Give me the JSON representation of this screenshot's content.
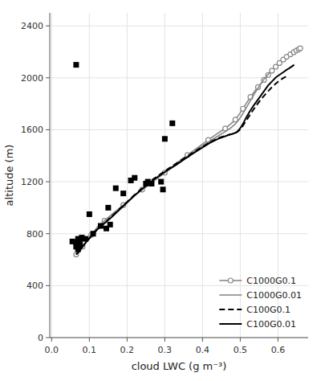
{
  "chart_data": {
    "type": "line",
    "xlabel": "cloud LWC (g m⁻³)",
    "ylabel": "altitude (m)",
    "xlim": [
      -0.005,
      0.68
    ],
    "ylim": [
      0,
      2500
    ],
    "xticks": [
      {
        "value": 0.0,
        "label": "0.0"
      },
      0.1,
      0.2,
      0.3,
      0.4,
      0.5,
      0.6
    ],
    "yticks": [
      0,
      400,
      800,
      1200,
      1600,
      2000,
      2400
    ],
    "grid": true,
    "legend": "lower right",
    "series": [
      {
        "name": "C1000G0.1",
        "type": "line",
        "color": "#888888",
        "line_style": "solid",
        "marker": "circle",
        "x": [
          0.065,
          0.072,
          0.082,
          0.093,
          0.105,
          0.12,
          0.14,
          0.165,
          0.19,
          0.215,
          0.24,
          0.27,
          0.3,
          0.33,
          0.36,
          0.39,
          0.415,
          0.44,
          0.46,
          0.475,
          0.487,
          0.497,
          0.507,
          0.517,
          0.527,
          0.537,
          0.547,
          0.556,
          0.563,
          0.569,
          0.574,
          0.579,
          0.584,
          0.589,
          0.594,
          0.599,
          0.604,
          0.609,
          0.614,
          0.619,
          0.623,
          0.628,
          0.633,
          0.638,
          0.642,
          0.646,
          0.649,
          0.652,
          0.655,
          0.657,
          0.659,
          0.661
        ],
        "values": [
          640,
          660,
          700,
          745,
          790,
          845,
          900,
          960,
          1020,
          1080,
          1140,
          1205,
          1270,
          1340,
          1405,
          1468,
          1522,
          1572,
          1610,
          1645,
          1678,
          1718,
          1762,
          1808,
          1852,
          1892,
          1928,
          1960,
          1984,
          2005,
          2022,
          2038,
          2055,
          2070,
          2085,
          2100,
          2114,
          2127,
          2140,
          2152,
          2162,
          2172,
          2181,
          2190,
          2197,
          2204,
          2210,
          2215,
          2220,
          2224,
          2227,
          2230
        ]
      },
      {
        "name": "C1000G0.01",
        "type": "line",
        "color": "#888888",
        "line_style": "solid",
        "x": [
          0.065,
          0.072,
          0.082,
          0.093,
          0.105,
          0.12,
          0.14,
          0.165,
          0.19,
          0.215,
          0.24,
          0.27,
          0.3,
          0.33,
          0.36,
          0.39,
          0.415,
          0.44,
          0.46,
          0.475,
          0.487,
          0.497,
          0.507,
          0.517,
          0.527,
          0.537,
          0.547,
          0.556,
          0.563,
          0.569,
          0.574,
          0.578
        ],
        "values": [
          640,
          660,
          700,
          745,
          790,
          845,
          900,
          960,
          1020,
          1080,
          1140,
          1205,
          1270,
          1335,
          1395,
          1455,
          1505,
          1550,
          1585,
          1615,
          1645,
          1680,
          1725,
          1775,
          1825,
          1875,
          1920,
          1960,
          1990,
          2010,
          2028,
          2040
        ]
      },
      {
        "name": "C100G0.1",
        "type": "line",
        "color": "#000000",
        "line_style": "dashed",
        "x": [
          0.065,
          0.072,
          0.082,
          0.093,
          0.105,
          0.12,
          0.14,
          0.16,
          0.18,
          0.2,
          0.22,
          0.245,
          0.27,
          0.3,
          0.33,
          0.36,
          0.39,
          0.42,
          0.445,
          0.46,
          0.47,
          0.478,
          0.483,
          0.488,
          0.492,
          0.495,
          0.499,
          0.504,
          0.51,
          0.518,
          0.528,
          0.538,
          0.548,
          0.558,
          0.568,
          0.578,
          0.588,
          0.598,
          0.607,
          0.614,
          0.619,
          0.623
        ],
        "values": [
          640,
          660,
          700,
          740,
          780,
          830,
          880,
          935,
          990,
          1045,
          1100,
          1162,
          1222,
          1282,
          1340,
          1398,
          1452,
          1505,
          1540,
          1553,
          1562,
          1568,
          1573,
          1578,
          1583,
          1590,
          1600,
          1618,
          1645,
          1680,
          1725,
          1768,
          1808,
          1845,
          1878,
          1910,
          1940,
          1965,
          1985,
          1998,
          2006,
          2012
        ]
      },
      {
        "name": "C100G0.01",
        "type": "line",
        "color": "#000000",
        "line_style": "solid",
        "x": [
          0.065,
          0.072,
          0.082,
          0.093,
          0.105,
          0.12,
          0.14,
          0.16,
          0.18,
          0.2,
          0.22,
          0.245,
          0.27,
          0.3,
          0.33,
          0.36,
          0.39,
          0.42,
          0.445,
          0.46,
          0.47,
          0.478,
          0.483,
          0.488,
          0.492,
          0.495,
          0.498,
          0.502,
          0.508,
          0.515,
          0.525,
          0.535,
          0.545,
          0.555,
          0.565,
          0.575,
          0.585,
          0.595,
          0.605,
          0.615,
          0.622,
          0.628,
          0.633,
          0.637,
          0.64,
          0.643
        ],
        "values": [
          640,
          660,
          700,
          740,
          780,
          830,
          880,
          930,
          985,
          1040,
          1095,
          1155,
          1215,
          1275,
          1330,
          1390,
          1445,
          1500,
          1535,
          1550,
          1560,
          1567,
          1572,
          1578,
          1585,
          1595,
          1605,
          1620,
          1650,
          1690,
          1740,
          1785,
          1825,
          1865,
          1905,
          1945,
          1975,
          2005,
          2025,
          2045,
          2060,
          2070,
          2080,
          2088,
          2094,
          2100
        ]
      },
      {
        "type": "scatter",
        "color": "#000000",
        "marker": "square",
        "x": [
          0.065,
          0.055,
          0.075,
          0.07,
          0.065,
          0.07,
          0.08,
          0.075,
          0.09,
          0.1,
          0.11,
          0.13,
          0.145,
          0.155,
          0.15,
          0.17,
          0.19,
          0.21,
          0.22,
          0.255,
          0.265,
          0.25,
          0.3,
          0.32,
          0.295,
          0.29,
          0.065
        ],
        "values": [
          700,
          740,
          710,
          760,
          730,
          680,
          770,
          745,
          760,
          950,
          800,
          860,
          840,
          870,
          1000,
          1150,
          1110,
          1210,
          1230,
          1200,
          1185,
          1185,
          1530,
          1650,
          1140,
          1200,
          2100
        ]
      }
    ]
  }
}
